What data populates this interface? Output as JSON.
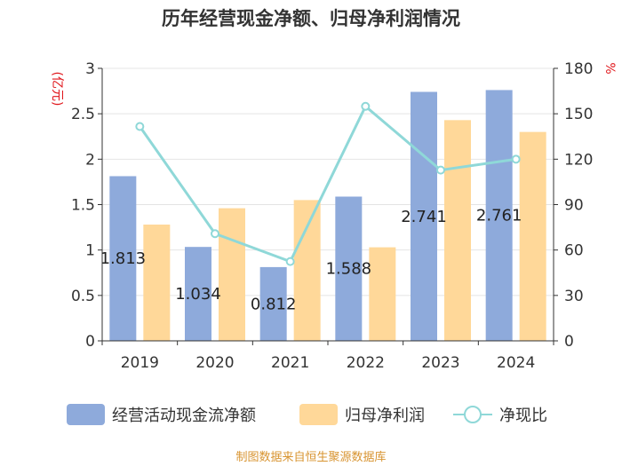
{
  "chart_data": {
    "type": "bar",
    "title": "历年经营现金净额、归母净利润情况",
    "categories": [
      "2019",
      "2020",
      "2021",
      "2022",
      "2023",
      "2024"
    ],
    "series": [
      {
        "name": "经营活动现金流净额",
        "kind": "bar",
        "axis": "left",
        "color": "#8eaadb",
        "values": [
          1.813,
          1.034,
          0.812,
          1.588,
          2.741,
          2.761
        ],
        "labels": [
          "1.813",
          "1.034",
          "0.812",
          "1.588",
          "2.741",
          "2.761"
        ]
      },
      {
        "name": "归母净利润",
        "kind": "bar",
        "axis": "left",
        "color": "#ffd899",
        "values": [
          1.28,
          1.46,
          1.55,
          1.03,
          2.43,
          2.3
        ]
      },
      {
        "name": "净现比",
        "kind": "line",
        "axis": "right",
        "color": "#8fd8d8",
        "values": [
          141.6,
          70.8,
          52.4,
          154.9,
          112.8,
          120.0
        ]
      }
    ],
    "y_left": {
      "label": "(亿元)",
      "min": 0,
      "max": 3,
      "ticks": [
        "0",
        "0.5",
        "1",
        "1.5",
        "2",
        "2.5",
        "3"
      ]
    },
    "y_right": {
      "label": "%",
      "min": 0,
      "max": 180,
      "ticks": [
        "0",
        "30",
        "60",
        "90",
        "120",
        "150",
        "180"
      ]
    },
    "grid": true,
    "legend_position": "bottom",
    "source": "制图数据来自恒生聚源数据库"
  },
  "colors": {
    "axis_label": "#e0161b",
    "source": "#d89431",
    "grid": "#e4e4e4",
    "axis": "#333333"
  }
}
